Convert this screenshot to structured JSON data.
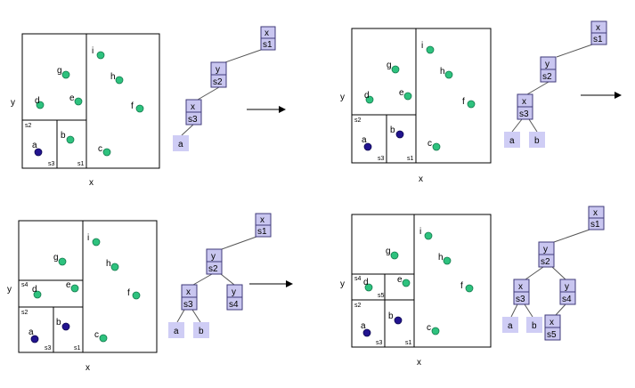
{
  "axis": {
    "x": "x",
    "y": "y"
  },
  "colors": {
    "green_point": "#2ec27e",
    "blue_point": "#22148f",
    "node_fill": "#c9c6f0",
    "node_border": "#3f3a7a",
    "leaf_fill": "#cfcdf5"
  },
  "panels": [
    {
      "id": "p1",
      "points": [
        "a",
        "b",
        "c",
        "d",
        "e",
        "f",
        "g",
        "h",
        "i"
      ],
      "region_labels": [
        "s1",
        "s2",
        "s3"
      ],
      "tree_internal": [
        {
          "axis": "x",
          "split": "s1"
        },
        {
          "axis": "y",
          "split": "s2"
        },
        {
          "axis": "x",
          "split": "s3"
        }
      ],
      "tree_leaves": [
        "a"
      ]
    },
    {
      "id": "p2",
      "points": [
        "a",
        "b",
        "c",
        "d",
        "e",
        "f",
        "g",
        "h",
        "i"
      ],
      "region_labels": [
        "s1",
        "s2",
        "s3"
      ],
      "tree_internal": [
        {
          "axis": "x",
          "split": "s1"
        },
        {
          "axis": "y",
          "split": "s2"
        },
        {
          "axis": "x",
          "split": "s3"
        }
      ],
      "tree_leaves": [
        "a",
        "b"
      ]
    },
    {
      "id": "p3",
      "points": [
        "a",
        "b",
        "c",
        "d",
        "e",
        "f",
        "g",
        "h",
        "i"
      ],
      "region_labels": [
        "s1",
        "s2",
        "s3",
        "s4"
      ],
      "tree_internal": [
        {
          "axis": "x",
          "split": "s1"
        },
        {
          "axis": "y",
          "split": "s2"
        },
        {
          "axis": "x",
          "split": "s3"
        },
        {
          "axis": "y",
          "split": "s4"
        }
      ],
      "tree_leaves": [
        "a",
        "b"
      ]
    },
    {
      "id": "p4",
      "points": [
        "a",
        "b",
        "c",
        "d",
        "e",
        "f",
        "g",
        "h",
        "i"
      ],
      "region_labels": [
        "s1",
        "s2",
        "s3",
        "s4",
        "s5"
      ],
      "tree_internal": [
        {
          "axis": "x",
          "split": "s1"
        },
        {
          "axis": "y",
          "split": "s2"
        },
        {
          "axis": "x",
          "split": "s3"
        },
        {
          "axis": "y",
          "split": "s4"
        },
        {
          "axis": "x",
          "split": "s5"
        }
      ],
      "tree_leaves": [
        "a",
        "b"
      ]
    }
  ]
}
